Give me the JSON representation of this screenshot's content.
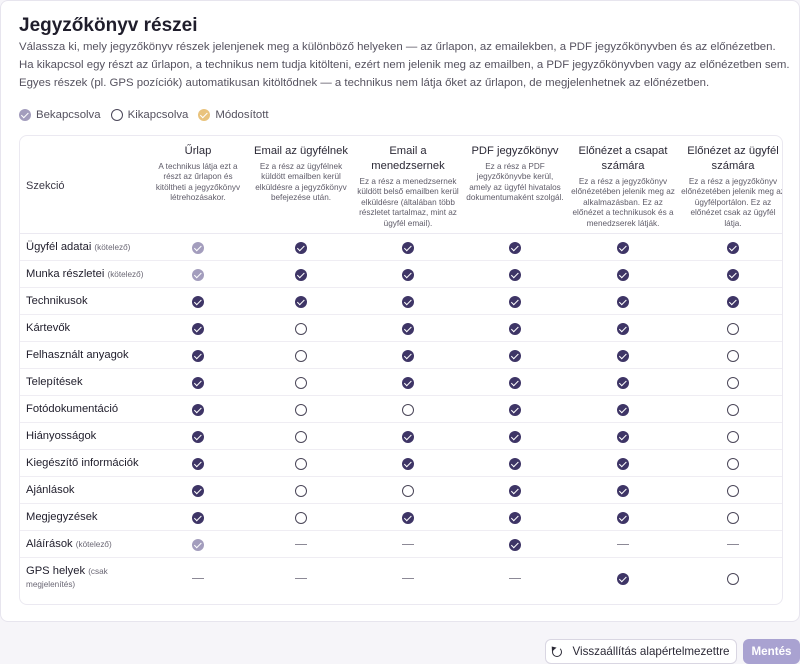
{
  "page": {
    "title": "Jegyzőkönyv részei",
    "desc1": "Válassza ki, mely jegyzőkönyv részek jelenjenek meg a különböző helyeken — az űrlapon, az emailekben, a PDF jegyzőkönyvben és az előnézetben.",
    "desc2": "Ha kikapcsol egy részt az űrlapon, a technikus nem tudja kitölteni, ezért nem jelenik meg az emailben, a PDF jegyzőkönyvben vagy az előnézetben sem.",
    "desc3": "Egyes részek (pl. GPS pozíciók) automatikusan kitöltődnek — a technikus nem látja őket az űrlapon, de megjelenhetnek az előnézetben."
  },
  "legend": {
    "on": "Bekapcsolva",
    "off": "Kikapcsolva",
    "modified": "Módosított"
  },
  "table": {
    "section_header": "Szekció",
    "required_label": "(kötelező)",
    "gps_note": "(csak megjelenítés)",
    "columns": [
      {
        "title": "Űrlap",
        "desc": "A technikus látja ezt a részt az űrlapon és kitöltheti a jegyzőkönyv létrehozásakor."
      },
      {
        "title": "Email az ügyfélnek",
        "desc": "Ez a rész az ügyfélnek küldött emailben kerül elküldésre a jegyzőkönyv befejezése után."
      },
      {
        "title": "Email a menedzsernek",
        "desc": "Ez a rész a menedzsernek küldött belső emailben kerül elküldésre (általában több részletet tartalmaz, mint az ügyfél email)."
      },
      {
        "title": "PDF jegyzőkönyv",
        "desc": "Ez a rész a PDF jegyzőkönyvbe kerül, amely az ügyfél hivatalos dokumentumaként szolgál."
      },
      {
        "title": "Előnézet a csapat számára",
        "desc": "Ez a rész a jegyzőkönyv előnézetében jelenik meg az alkalmazásban. Ez az előnézet a technikusok és a menedzserek látják."
      },
      {
        "title": "Előnézet az ügyfél számára",
        "desc": "Ez a rész a jegyzőkönyv előnézetében jelenik meg az ügyfélportálon. Ez az előnézet csak az ügyfél látja."
      }
    ],
    "rows": [
      {
        "label": "Ügyfél adatai",
        "required": true,
        "cells": [
          "lock",
          "on",
          "on",
          "on",
          "on",
          "on"
        ]
      },
      {
        "label": "Munka részletei",
        "required": true,
        "cells": [
          "lock",
          "on",
          "on",
          "on",
          "on",
          "on"
        ]
      },
      {
        "label": "Technikusok",
        "required": false,
        "cells": [
          "on",
          "on",
          "on",
          "on",
          "on",
          "on"
        ]
      },
      {
        "label": "Kártevők",
        "required": false,
        "cells": [
          "on",
          "off",
          "on",
          "on",
          "on",
          "off"
        ]
      },
      {
        "label": "Felhasznált anyagok",
        "required": false,
        "cells": [
          "on",
          "off",
          "on",
          "on",
          "on",
          "off"
        ]
      },
      {
        "label": "Telepítések",
        "required": false,
        "cells": [
          "on",
          "off",
          "on",
          "on",
          "on",
          "off"
        ]
      },
      {
        "label": "Fotódokumentáció",
        "required": false,
        "cells": [
          "on",
          "off",
          "off",
          "on",
          "on",
          "off"
        ]
      },
      {
        "label": "Hiányosságok",
        "required": false,
        "cells": [
          "on",
          "off",
          "on",
          "on",
          "on",
          "off"
        ]
      },
      {
        "label": "Kiegészítő információk",
        "required": false,
        "cells": [
          "on",
          "off",
          "on",
          "on",
          "on",
          "off"
        ]
      },
      {
        "label": "Ajánlások",
        "required": false,
        "cells": [
          "on",
          "off",
          "off",
          "on",
          "on",
          "off"
        ]
      },
      {
        "label": "Megjegyzések",
        "required": false,
        "cells": [
          "on",
          "off",
          "on",
          "on",
          "on",
          "off"
        ]
      },
      {
        "label": "Aláírások",
        "required": true,
        "cells": [
          "lock",
          "dash",
          "dash",
          "on",
          "dash",
          "dash"
        ]
      },
      {
        "label": "GPS helyek",
        "required": false,
        "gps": true,
        "cells": [
          "dash",
          "dash",
          "dash",
          "dash",
          "on",
          "off"
        ]
      }
    ]
  },
  "footer": {
    "reset_label": "Visszaállítás alapértelmezettre",
    "save_label": "Mentés"
  },
  "colors": {
    "on": "#3e3566",
    "locked": "#a39dbd",
    "modified": "#e9c37d",
    "save": "#a9a2d1"
  }
}
